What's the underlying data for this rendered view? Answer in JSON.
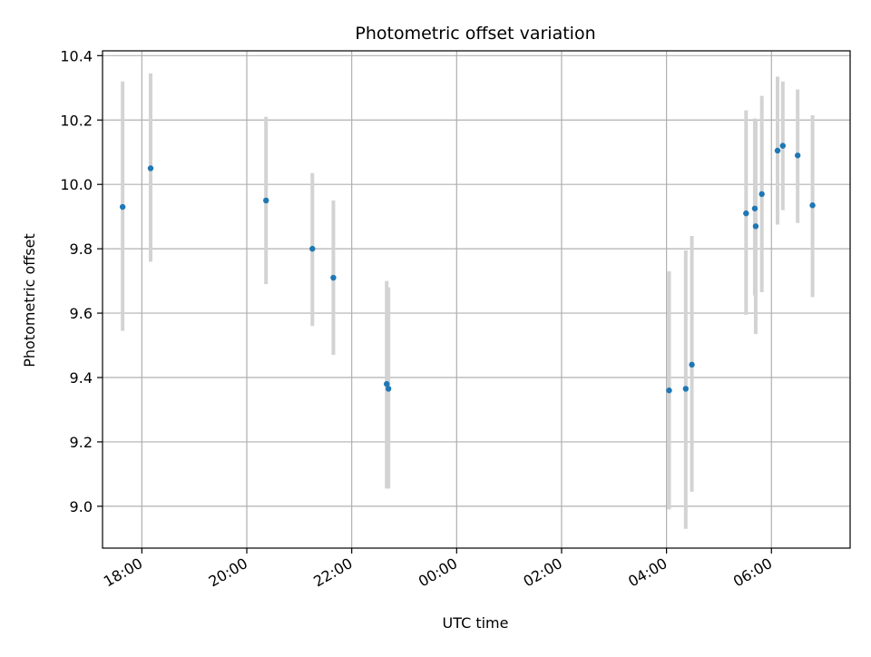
{
  "chart_data": {
    "type": "scatter",
    "title": "Photometric offset variation",
    "xlabel": "UTC time",
    "ylabel": "Photometric offset",
    "x_axis": "time (HH:MM), spans evening to next morning",
    "x_range": [
      "17:15",
      "07:30"
    ],
    "ylim": [
      8.87,
      10.415
    ],
    "grid": true,
    "colors": {
      "point": "#1f77b4",
      "errorbar": "#d3d3d3",
      "grid": "#b0b0b0"
    },
    "x_ticks": [
      "18:00",
      "20:00",
      "22:00",
      "00:00",
      "02:00",
      "04:00",
      "06:00"
    ],
    "y_ticks": [
      "9.0",
      "9.2",
      "9.4",
      "9.6",
      "9.8",
      "10.0",
      "10.2",
      "10.4"
    ],
    "series": [
      {
        "points": [
          {
            "x": "17:38",
            "y": 9.93,
            "ylow": 9.545,
            "yhigh": 10.32
          },
          {
            "x": "18:10",
            "y": 10.05,
            "ylow": 9.76,
            "yhigh": 10.345
          },
          {
            "x": "20:22",
            "y": 9.95,
            "ylow": 9.69,
            "yhigh": 10.21
          },
          {
            "x": "21:15",
            "y": 9.8,
            "ylow": 9.56,
            "yhigh": 10.035
          },
          {
            "x": "21:39",
            "y": 9.71,
            "ylow": 9.47,
            "yhigh": 9.95
          },
          {
            "x": "22:40",
            "y": 9.38,
            "ylow": 9.055,
            "yhigh": 9.7
          },
          {
            "x": "22:42",
            "y": 9.365,
            "ylow": 9.055,
            "yhigh": 9.68
          },
          {
            "x": "04:03",
            "y": 9.36,
            "ylow": 8.99,
            "yhigh": 9.73
          },
          {
            "x": "04:22",
            "y": 9.365,
            "ylow": 8.93,
            "yhigh": 9.795
          },
          {
            "x": "04:29",
            "y": 9.44,
            "ylow": 9.045,
            "yhigh": 9.84
          },
          {
            "x": "05:31",
            "y": 9.91,
            "ylow": 9.595,
            "yhigh": 10.23
          },
          {
            "x": "05:41",
            "y": 9.925,
            "ylow": 9.655,
            "yhigh": 10.205
          },
          {
            "x": "05:42",
            "y": 9.87,
            "ylow": 9.535,
            "yhigh": 10.2
          },
          {
            "x": "05:49",
            "y": 9.97,
            "ylow": 9.665,
            "yhigh": 10.275
          },
          {
            "x": "06:07",
            "y": 10.105,
            "ylow": 9.875,
            "yhigh": 10.335
          },
          {
            "x": "06:13",
            "y": 10.12,
            "ylow": 9.92,
            "yhigh": 10.32
          },
          {
            "x": "06:30",
            "y": 10.09,
            "ylow": 9.88,
            "yhigh": 10.295
          },
          {
            "x": "06:47",
            "y": 9.935,
            "ylow": 9.65,
            "yhigh": 10.215
          }
        ]
      }
    ]
  }
}
